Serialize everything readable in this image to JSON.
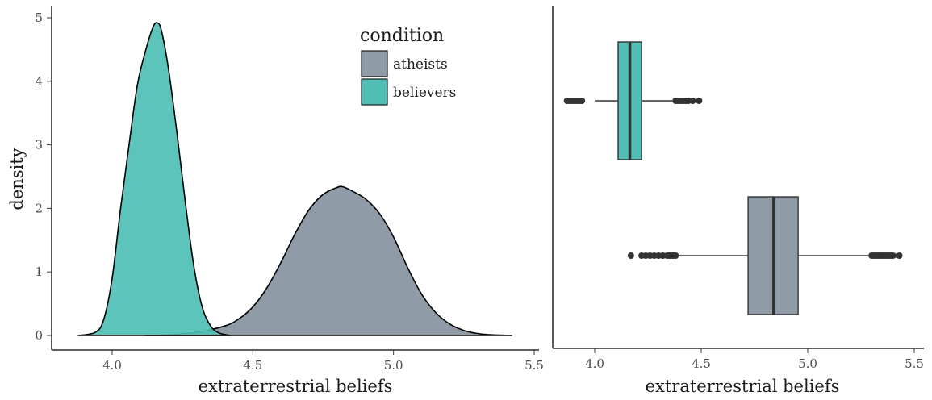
{
  "chart_data": [
    {
      "type": "area",
      "subtype": "density",
      "xlabel": "extraterrestrial beliefs",
      "ylabel": "density",
      "xlim": [
        3.85,
        5.5
      ],
      "ylim": [
        0,
        5.1
      ],
      "x_ticks": [
        "4.0",
        "4.5",
        "5.0",
        "5.5"
      ],
      "y_ticks": [
        "0",
        "1",
        "2",
        "3",
        "4",
        "5"
      ],
      "grid": false,
      "legend": {
        "title": "condition",
        "placement": "top-center",
        "entries": [
          "atheists",
          "believers"
        ]
      },
      "series": [
        {
          "name": "atheists",
          "color": "#8f9ca8",
          "x": [
            4.12,
            4.2,
            4.3,
            4.4,
            4.45,
            4.5,
            4.55,
            4.6,
            4.65,
            4.7,
            4.75,
            4.8,
            4.82,
            4.85,
            4.9,
            4.95,
            5.0,
            5.05,
            5.1,
            5.15,
            5.2,
            5.25,
            5.3,
            5.35,
            5.42
          ],
          "y": [
            0.0,
            0.01,
            0.05,
            0.15,
            0.26,
            0.45,
            0.75,
            1.15,
            1.6,
            1.98,
            2.22,
            2.33,
            2.34,
            2.28,
            2.15,
            1.92,
            1.55,
            1.07,
            0.65,
            0.36,
            0.18,
            0.08,
            0.03,
            0.01,
            0.0
          ]
        },
        {
          "name": "believers",
          "color": "#4fbfb5",
          "x": [
            3.88,
            3.94,
            3.97,
            4.0,
            4.03,
            4.06,
            4.09,
            4.12,
            4.145,
            4.16,
            4.175,
            4.2,
            4.23,
            4.26,
            4.29,
            4.32,
            4.35,
            4.38,
            4.42
          ],
          "y": [
            0.0,
            0.05,
            0.25,
            0.9,
            2.0,
            3.0,
            3.95,
            4.5,
            4.85,
            4.92,
            4.8,
            4.2,
            3.2,
            2.1,
            1.1,
            0.45,
            0.15,
            0.04,
            0.0
          ]
        }
      ]
    },
    {
      "type": "box",
      "xlabel": "extraterrestrial beliefs",
      "xlim": [
        3.85,
        5.5
      ],
      "x_ticks": [
        "4.0",
        "4.5",
        "5.0",
        "5.5"
      ],
      "grid": false,
      "series": [
        {
          "name": "believers",
          "color": "#4fbfb5",
          "whisker_low": 4.0,
          "q1": 4.11,
          "median": 4.165,
          "q3": 4.22,
          "whisker_high": 4.37,
          "outliers": [
            3.87,
            3.88,
            3.89,
            3.9,
            3.91,
            3.92,
            3.93,
            3.94,
            4.38,
            4.39,
            4.4,
            4.41,
            4.42,
            4.43,
            4.44,
            4.46,
            4.49
          ]
        },
        {
          "name": "atheists",
          "color": "#8f9ca8",
          "whisker_low": 4.39,
          "q1": 4.72,
          "median": 4.84,
          "q3": 4.955,
          "whisker_high": 5.29,
          "outliers": [
            4.17,
            4.22,
            4.24,
            4.26,
            4.28,
            4.3,
            4.32,
            4.34,
            4.35,
            4.36,
            4.37,
            4.38,
            5.3,
            5.31,
            5.32,
            5.33,
            5.34,
            5.35,
            5.36,
            5.37,
            5.38,
            5.39,
            5.4,
            5.43
          ]
        }
      ]
    }
  ]
}
